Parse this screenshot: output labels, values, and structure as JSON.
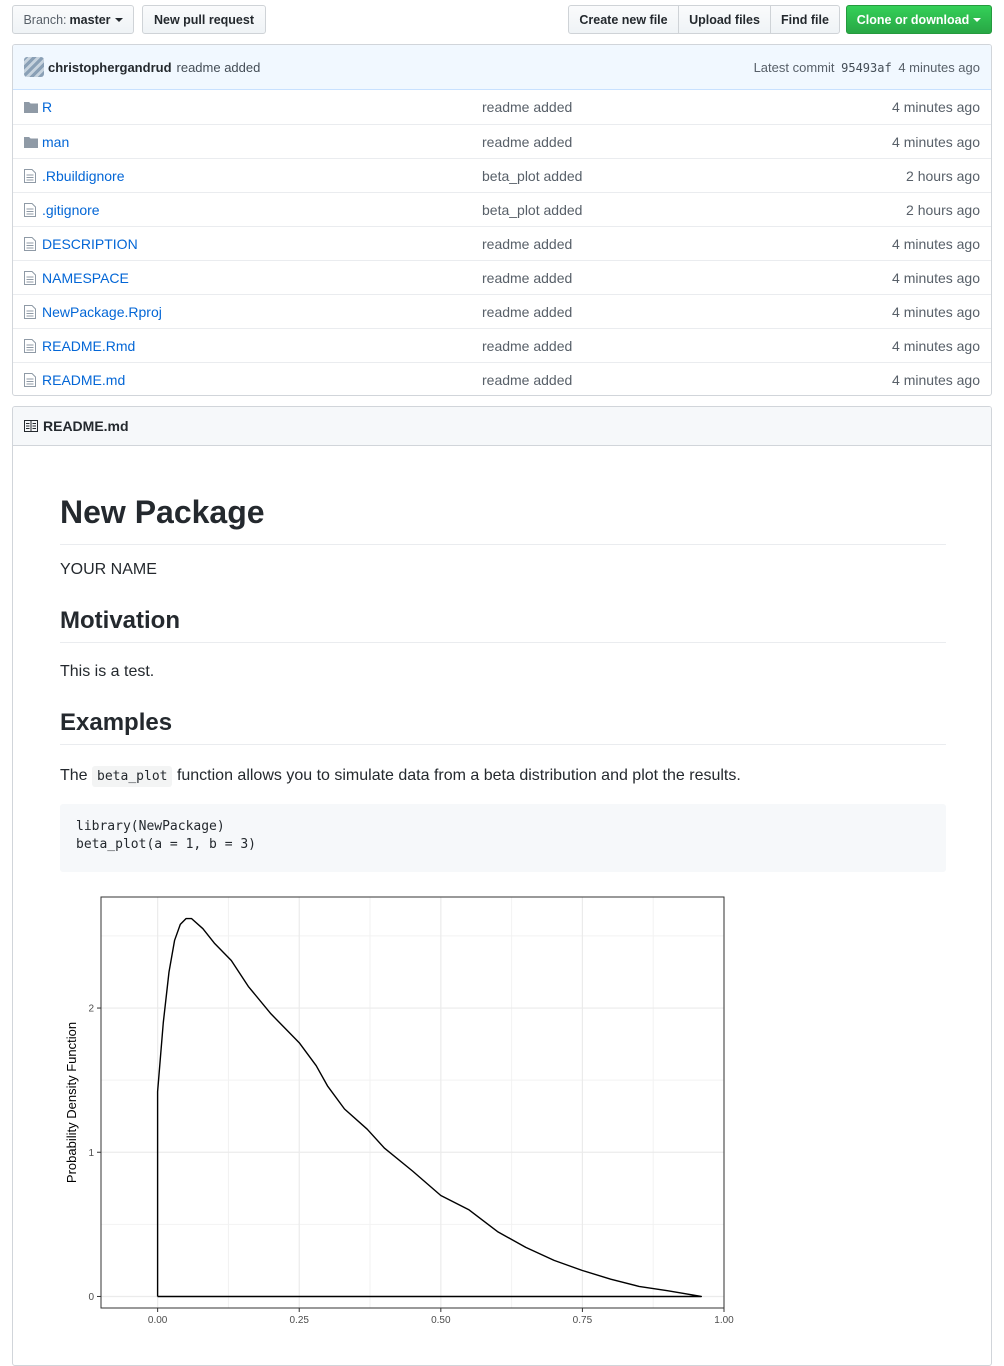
{
  "toolbar": {
    "branch_prefix": "Branch:",
    "branch_name": "master",
    "new_pull_request": "New pull request",
    "create_new_file": "Create new file",
    "upload_files": "Upload files",
    "find_file": "Find file",
    "clone_or_download": "Clone or download"
  },
  "commit": {
    "author": "christophergandrud",
    "message": "readme added",
    "latest_label": "Latest commit",
    "sha": "95493af",
    "age": "4 minutes ago"
  },
  "files": [
    {
      "name": "R",
      "type": "dir",
      "message": "readme added",
      "age": "4 minutes ago"
    },
    {
      "name": "man",
      "type": "dir",
      "message": "readme added",
      "age": "4 minutes ago"
    },
    {
      "name": ".Rbuildignore",
      "type": "file",
      "message": "beta_plot added",
      "age": "2 hours ago"
    },
    {
      "name": ".gitignore",
      "type": "file",
      "message": "beta_plot added",
      "age": "2 hours ago"
    },
    {
      "name": "DESCRIPTION",
      "type": "file",
      "message": "readme added",
      "age": "4 minutes ago"
    },
    {
      "name": "NAMESPACE",
      "type": "file",
      "message": "readme added",
      "age": "4 minutes ago"
    },
    {
      "name": "NewPackage.Rproj",
      "type": "file",
      "message": "readme added",
      "age": "4 minutes ago"
    },
    {
      "name": "README.Rmd",
      "type": "file",
      "message": "readme added",
      "age": "4 minutes ago"
    },
    {
      "name": "README.md",
      "type": "file",
      "message": "readme added",
      "age": "4 minutes ago"
    }
  ],
  "readme": {
    "filename": "README.md",
    "title": "New Package",
    "author": "YOUR NAME",
    "motivation_heading": "Motivation",
    "motivation_text": "This is a test.",
    "examples_heading": "Examples",
    "examples_text_before": "The",
    "examples_code": "beta_plot",
    "examples_text_after": "function allows you to simulate data from a beta distribution and plot the results.",
    "code_lines": [
      "library(NewPackage)",
      "beta_plot(a = 1, b = 3)"
    ]
  },
  "colors": {
    "link": "#0366d6",
    "muted": "#586069",
    "green": "#28a745",
    "commit_bg": "#f1f8ff"
  },
  "chart_data": {
    "type": "line",
    "title": "",
    "xlabel": "",
    "ylabel": "Probability Density Function",
    "xlim": [
      -0.1,
      1.0
    ],
    "ylim": [
      -0.08,
      2.77
    ],
    "xticks": [
      0.0,
      0.25,
      0.5,
      0.75,
      1.0
    ],
    "xtick_labels": [
      "0.00",
      "0.25",
      "0.50",
      "0.75",
      "1.00"
    ],
    "yticks": [
      0,
      1,
      2
    ],
    "ytick_labels": [
      "0",
      "1",
      "2"
    ],
    "grid": true,
    "series": [
      {
        "values": [
          [
            0.0,
            0.0
          ],
          [
            0.0,
            1.42
          ],
          [
            0.01,
            1.9
          ],
          [
            0.02,
            2.25
          ],
          [
            0.03,
            2.47
          ],
          [
            0.04,
            2.58
          ],
          [
            0.05,
            2.62
          ],
          [
            0.06,
            2.62
          ],
          [
            0.08,
            2.55
          ],
          [
            0.1,
            2.45
          ],
          [
            0.13,
            2.33
          ],
          [
            0.16,
            2.15
          ],
          [
            0.2,
            1.96
          ],
          [
            0.25,
            1.76
          ],
          [
            0.28,
            1.6
          ],
          [
            0.3,
            1.46
          ],
          [
            0.33,
            1.3
          ],
          [
            0.37,
            1.16
          ],
          [
            0.4,
            1.03
          ],
          [
            0.45,
            0.87
          ],
          [
            0.5,
            0.7
          ],
          [
            0.55,
            0.6
          ],
          [
            0.6,
            0.45
          ],
          [
            0.65,
            0.34
          ],
          [
            0.7,
            0.25
          ],
          [
            0.75,
            0.18
          ],
          [
            0.8,
            0.12
          ],
          [
            0.85,
            0.07
          ],
          [
            0.9,
            0.04
          ],
          [
            0.93,
            0.02
          ],
          [
            0.96,
            0.0
          ],
          [
            0.0,
            0.0
          ]
        ]
      }
    ]
  }
}
